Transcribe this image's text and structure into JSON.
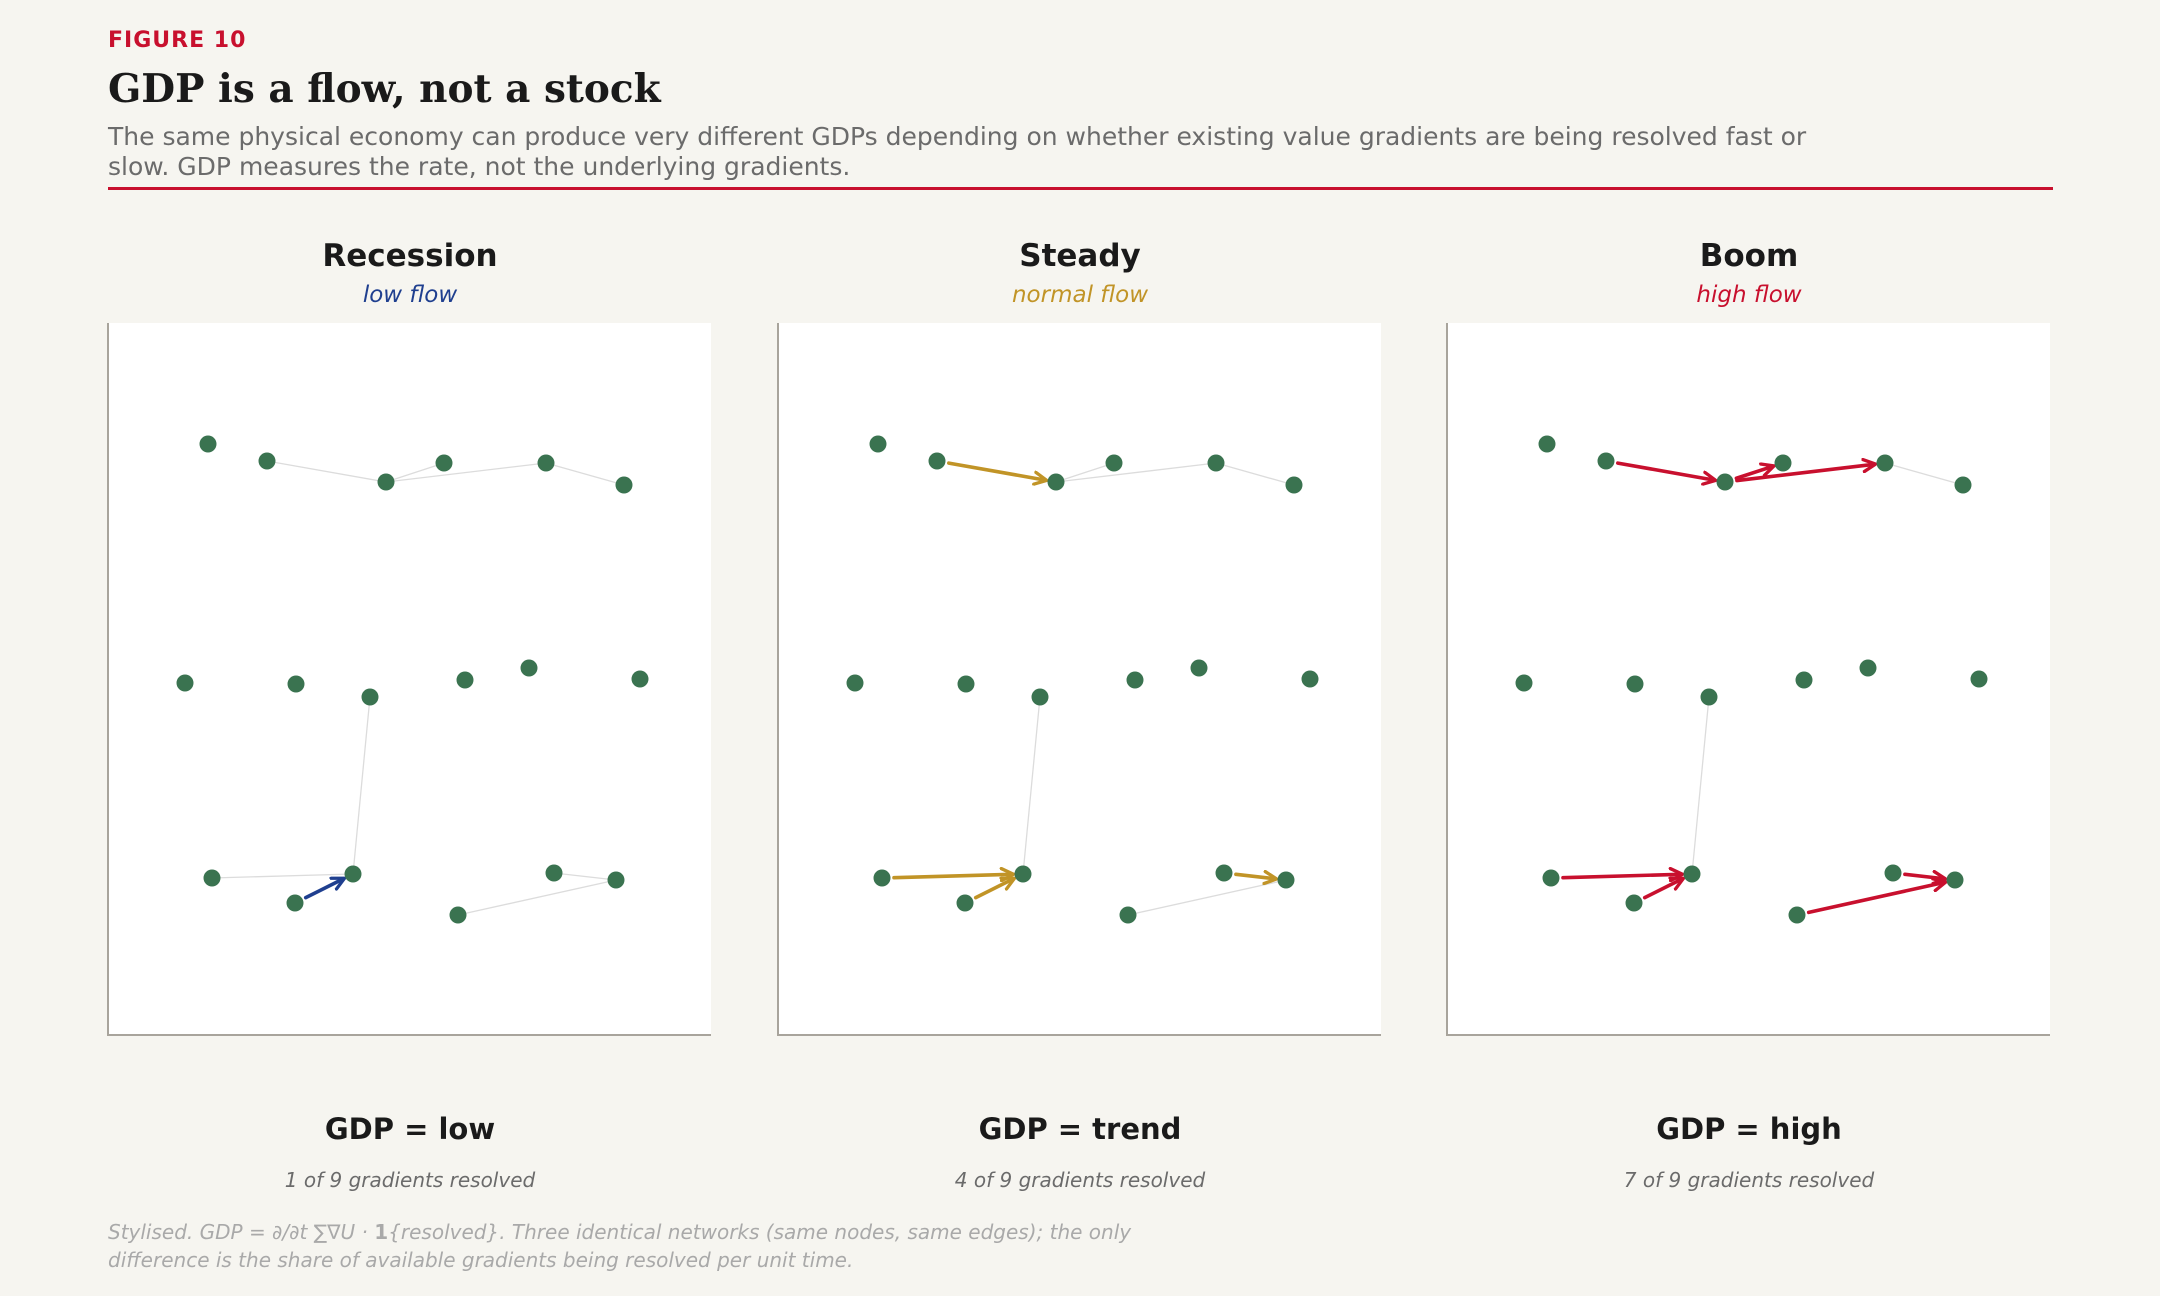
{
  "figure_label": "FIGURE 10",
  "title": "GDP is a flow, not a stock",
  "subtitle": "The same physical economy can produce very different GDPs depending on whether existing value gradients are being resolved fast or slow. GDP measures the rate, not the underlying gradients.",
  "colors": {
    "accent": "#c8102e",
    "node": "#3a7350",
    "edge": "#dcdcdc",
    "low": "#1f3f8f",
    "normal": "#c19427",
    "high": "#c8102e"
  },
  "network": {
    "nodes": [
      "n0",
      "n1",
      "n2",
      "n3",
      "n4",
      "n5",
      "n6",
      "n7",
      "n8",
      "n9",
      "n10",
      "n11",
      "n12",
      "n13",
      "n14",
      "n15",
      "n16",
      "n17",
      "n18"
    ],
    "edges": [
      [
        "n1",
        "n2"
      ],
      [
        "n2",
        "n3"
      ],
      [
        "n2",
        "n4"
      ],
      [
        "n4",
        "n5"
      ],
      [
        "n8",
        "n13"
      ],
      [
        "n12",
        "n13"
      ],
      [
        "n14",
        "n13"
      ],
      [
        "n15",
        "n17"
      ],
      [
        "n16",
        "n17"
      ]
    ]
  },
  "panels": [
    {
      "id": "recession",
      "title": "Recession",
      "flow_label": "low flow",
      "color_key": "low",
      "gdp_label": "GDP = low",
      "resolved_label": "1 of 9 gradients resolved",
      "resolved_edges": [
        [
          "n14",
          "n13"
        ]
      ]
    },
    {
      "id": "steady",
      "title": "Steady",
      "flow_label": "normal flow",
      "color_key": "normal",
      "gdp_label": "GDP = trend",
      "resolved_label": "4 of 9 gradients resolved",
      "resolved_edges": [
        [
          "n1",
          "n2"
        ],
        [
          "n12",
          "n13"
        ],
        [
          "n14",
          "n13"
        ],
        [
          "n16",
          "n17"
        ]
      ]
    },
    {
      "id": "boom",
      "title": "Boom",
      "flow_label": "high flow",
      "color_key": "high",
      "gdp_label": "GDP = high",
      "resolved_label": "7 of 9 gradients resolved",
      "resolved_edges": [
        [
          "n1",
          "n2"
        ],
        [
          "n2",
          "n3"
        ],
        [
          "n2",
          "n4"
        ],
        [
          "n12",
          "n13"
        ],
        [
          "n14",
          "n13"
        ],
        [
          "n15",
          "n17"
        ],
        [
          "n16",
          "n17"
        ]
      ]
    }
  ],
  "footnote": {
    "prefix": "Stylised. GDP ",
    "formula": "= ∂/∂t ∑∇U · ",
    "indicator": "1",
    "braces": "{resolved}",
    "suffix": ". Three identical networks (same nodes, same edges); the only difference is the share of available gradients being resolved per unit time."
  }
}
